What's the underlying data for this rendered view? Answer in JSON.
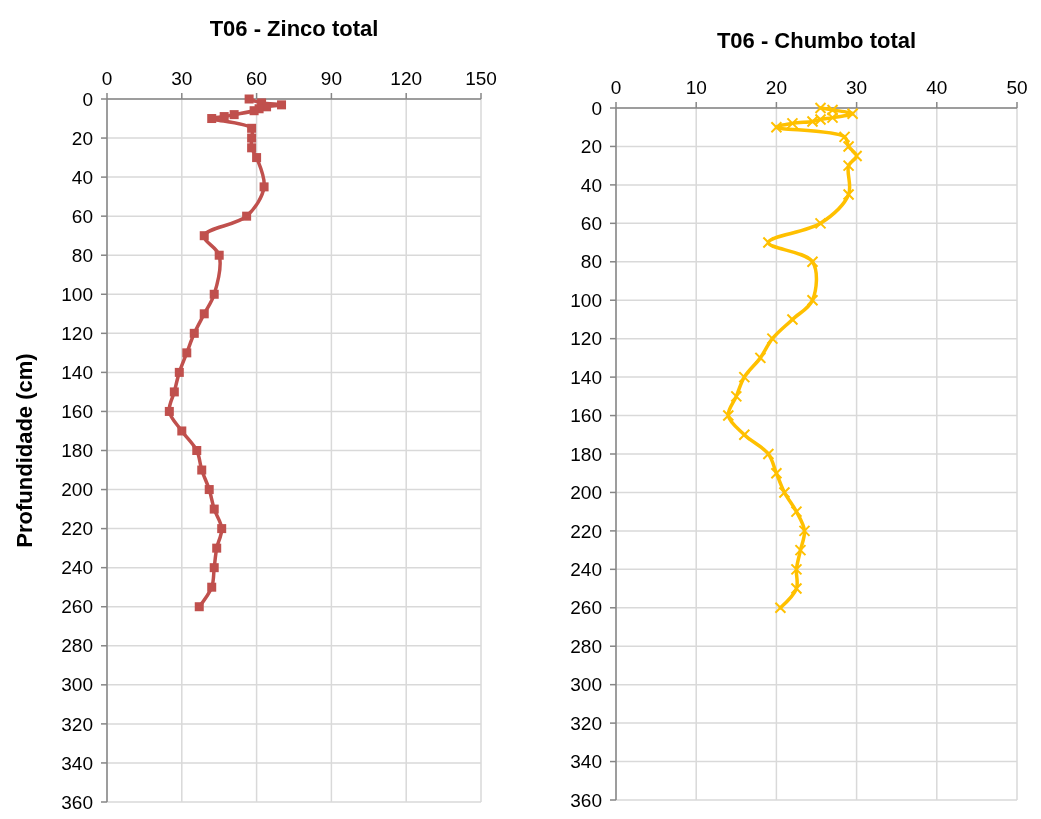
{
  "chart_data": [
    {
      "type": "line",
      "title": "T06 - Zinco total",
      "ylabel": "Profundidade (cm)",
      "marker": "square",
      "grid": true,
      "xlim": [
        0,
        150
      ],
      "xticks": [
        0,
        30,
        60,
        90,
        120,
        150
      ],
      "ylim": [
        360,
        0
      ],
      "yticks": [
        0,
        20,
        40,
        60,
        80,
        100,
        120,
        140,
        160,
        180,
        200,
        220,
        240,
        260,
        280,
        300,
        320,
        340,
        360
      ],
      "series": [
        {
          "color": "#c0504d",
          "x": [
            57,
            62,
            70,
            64,
            61,
            59,
            51,
            47,
            42,
            58,
            58,
            58,
            60,
            63,
            56,
            39,
            45,
            43,
            39,
            35,
            32,
            29,
            27,
            25,
            30,
            36,
            38,
            41,
            43,
            46,
            44,
            43,
            42,
            37
          ],
          "values": [
            0,
            2,
            3,
            4,
            5,
            6,
            8,
            9,
            10,
            15,
            20,
            25,
            30,
            45,
            60,
            70,
            80,
            100,
            110,
            120,
            130,
            140,
            150,
            160,
            170,
            180,
            190,
            200,
            210,
            220,
            230,
            240,
            250,
            260
          ]
        }
      ]
    },
    {
      "type": "line",
      "title": "T06 - Chumbo total",
      "marker": "cross",
      "grid": true,
      "xlim": [
        0,
        50
      ],
      "xticks": [
        0,
        10,
        20,
        30,
        40,
        50
      ],
      "ylim": [
        360,
        0
      ],
      "yticks": [
        0,
        20,
        40,
        60,
        80,
        100,
        120,
        140,
        160,
        180,
        200,
        220,
        240,
        260,
        280,
        300,
        320,
        340,
        360
      ],
      "series": [
        {
          "color": "#ffc000",
          "x": [
            25.5,
            27,
            29.5,
            27,
            25.5,
            24.5,
            22,
            20,
            28.5,
            29,
            30,
            29,
            29,
            25.5,
            19,
            24.5,
            24.5,
            22,
            19.5,
            18,
            16,
            15,
            14,
            16,
            19,
            20,
            21,
            22.5,
            23.5,
            23,
            22.5,
            22.5,
            20.5
          ],
          "values": [
            0,
            1,
            3,
            5,
            6,
            7,
            8,
            10,
            15,
            20,
            25,
            30,
            45,
            60,
            70,
            80,
            100,
            110,
            120,
            130,
            140,
            150,
            160,
            170,
            180,
            190,
            200,
            210,
            220,
            230,
            240,
            250,
            260
          ]
        }
      ]
    }
  ]
}
